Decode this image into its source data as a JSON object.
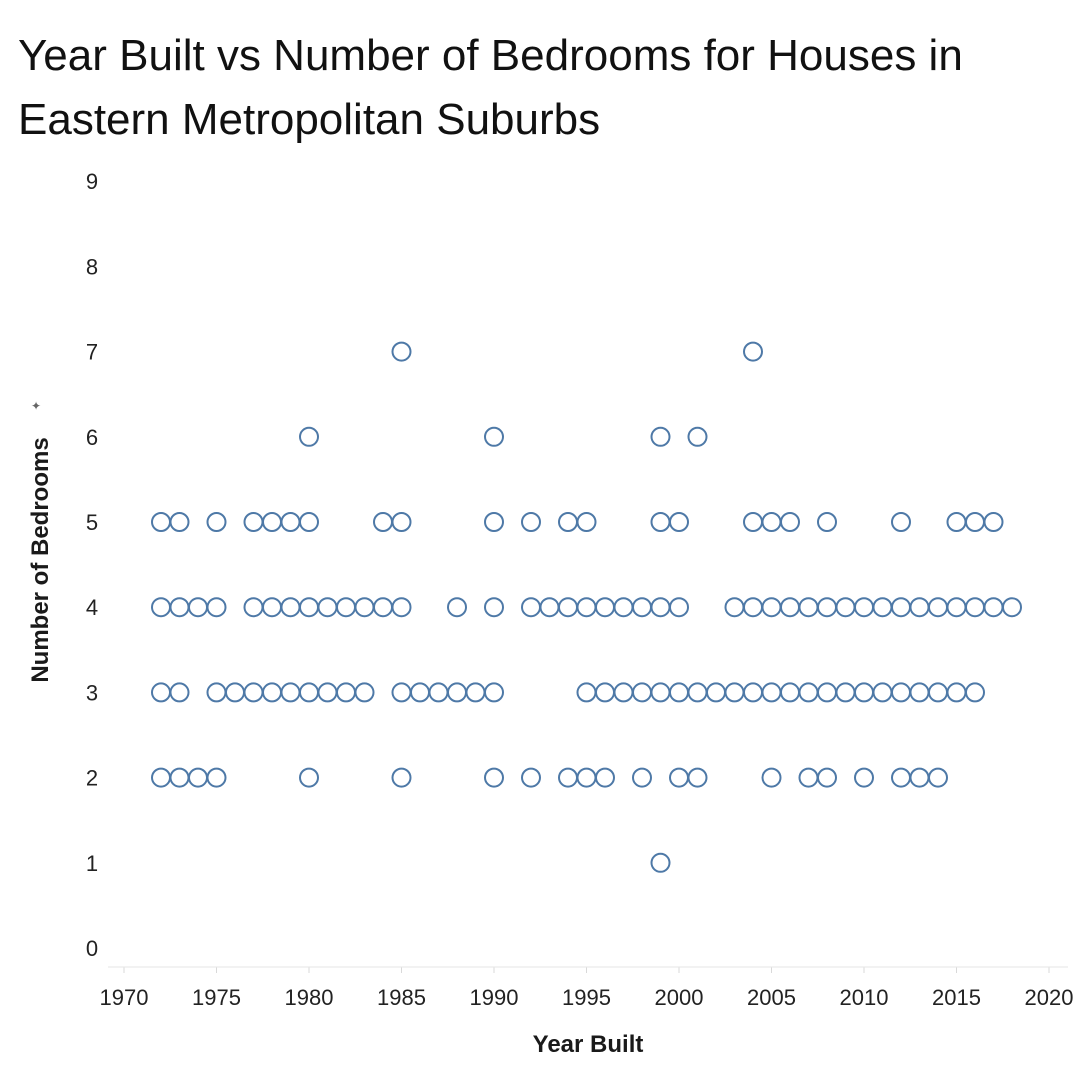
{
  "chart_data": {
    "type": "scatter",
    "title": "Year Built vs Number of Bedrooms for Houses in Eastern Metropolitan Suburbs",
    "xlabel": "Year Built",
    "ylabel": "Number of Bedrooms",
    "xlim": [
      1967,
      2022
    ],
    "ylim": [
      0,
      9
    ],
    "x_ticks": [
      1970,
      1975,
      1980,
      1985,
      1990,
      1995,
      2000,
      2005,
      2010,
      2015,
      2020
    ],
    "y_ticks": [
      0,
      1,
      2,
      3,
      4,
      5,
      6,
      7,
      8,
      9
    ],
    "grid": false,
    "marker": "open-circle",
    "marker_color": "#4e79a7",
    "series": [
      {
        "points": [
          [
            1972,
            2
          ],
          [
            1973,
            2
          ],
          [
            1974,
            2
          ],
          [
            1975,
            2
          ],
          [
            1980,
            2
          ],
          [
            1985,
            2
          ],
          [
            1990,
            2
          ],
          [
            1992,
            2
          ],
          [
            1994,
            2
          ],
          [
            1995,
            2
          ],
          [
            1996,
            2
          ],
          [
            1998,
            2
          ],
          [
            2000,
            2
          ],
          [
            2001,
            2
          ],
          [
            2005,
            2
          ],
          [
            2007,
            2
          ],
          [
            2008,
            2
          ],
          [
            2010,
            2
          ],
          [
            2012,
            2
          ],
          [
            2013,
            2
          ],
          [
            2014,
            2
          ],
          [
            1999,
            1
          ],
          [
            1972,
            3
          ],
          [
            1973,
            3
          ],
          [
            1975,
            3
          ],
          [
            1976,
            3
          ],
          [
            1977,
            3
          ],
          [
            1978,
            3
          ],
          [
            1979,
            3
          ],
          [
            1980,
            3
          ],
          [
            1981,
            3
          ],
          [
            1982,
            3
          ],
          [
            1983,
            3
          ],
          [
            1985,
            3
          ],
          [
            1986,
            3
          ],
          [
            1987,
            3
          ],
          [
            1988,
            3
          ],
          [
            1989,
            3
          ],
          [
            1990,
            3
          ],
          [
            1995,
            3
          ],
          [
            1996,
            3
          ],
          [
            1997,
            3
          ],
          [
            1998,
            3
          ],
          [
            1999,
            3
          ],
          [
            2000,
            3
          ],
          [
            2001,
            3
          ],
          [
            2002,
            3
          ],
          [
            2003,
            3
          ],
          [
            2004,
            3
          ],
          [
            2005,
            3
          ],
          [
            2006,
            3
          ],
          [
            2007,
            3
          ],
          [
            2008,
            3
          ],
          [
            2009,
            3
          ],
          [
            2010,
            3
          ],
          [
            2011,
            3
          ],
          [
            2012,
            3
          ],
          [
            2013,
            3
          ],
          [
            2014,
            3
          ],
          [
            2015,
            3
          ],
          [
            2016,
            3
          ],
          [
            1972,
            4
          ],
          [
            1973,
            4
          ],
          [
            1974,
            4
          ],
          [
            1975,
            4
          ],
          [
            1977,
            4
          ],
          [
            1978,
            4
          ],
          [
            1979,
            4
          ],
          [
            1980,
            4
          ],
          [
            1981,
            4
          ],
          [
            1982,
            4
          ],
          [
            1983,
            4
          ],
          [
            1984,
            4
          ],
          [
            1985,
            4
          ],
          [
            1988,
            4
          ],
          [
            1990,
            4
          ],
          [
            1992,
            4
          ],
          [
            1993,
            4
          ],
          [
            1994,
            4
          ],
          [
            1995,
            4
          ],
          [
            1996,
            4
          ],
          [
            1997,
            4
          ],
          [
            1998,
            4
          ],
          [
            1999,
            4
          ],
          [
            2000,
            4
          ],
          [
            2003,
            4
          ],
          [
            2004,
            4
          ],
          [
            2005,
            4
          ],
          [
            2006,
            4
          ],
          [
            2007,
            4
          ],
          [
            2008,
            4
          ],
          [
            2009,
            4
          ],
          [
            2010,
            4
          ],
          [
            2011,
            4
          ],
          [
            2012,
            4
          ],
          [
            2013,
            4
          ],
          [
            2014,
            4
          ],
          [
            2015,
            4
          ],
          [
            2016,
            4
          ],
          [
            2017,
            4
          ],
          [
            2018,
            4
          ],
          [
            1972,
            5
          ],
          [
            1973,
            5
          ],
          [
            1975,
            5
          ],
          [
            1977,
            5
          ],
          [
            1978,
            5
          ],
          [
            1979,
            5
          ],
          [
            1980,
            5
          ],
          [
            1984,
            5
          ],
          [
            1985,
            5
          ],
          [
            1990,
            5
          ],
          [
            1992,
            5
          ],
          [
            1994,
            5
          ],
          [
            1995,
            5
          ],
          [
            1999,
            5
          ],
          [
            2000,
            5
          ],
          [
            2004,
            5
          ],
          [
            2005,
            5
          ],
          [
            2006,
            5
          ],
          [
            2008,
            5
          ],
          [
            2012,
            5
          ],
          [
            2015,
            5
          ],
          [
            2016,
            5
          ],
          [
            2017,
            5
          ],
          [
            1980,
            6
          ],
          [
            1990,
            6
          ],
          [
            1999,
            6
          ],
          [
            2001,
            6
          ],
          [
            1985,
            7
          ],
          [
            2004,
            7
          ]
        ]
      }
    ]
  }
}
